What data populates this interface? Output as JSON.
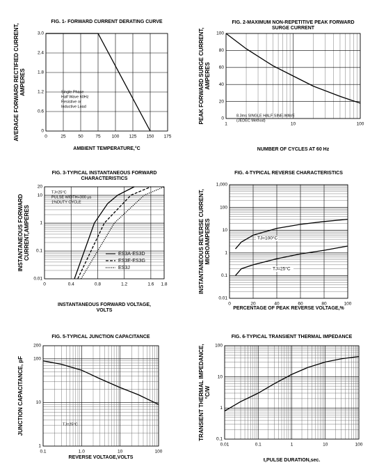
{
  "chart_data": [
    {
      "type": "line",
      "title": [
        "FIG. 1- FORWARD CURRENT DERATING CURVE"
      ],
      "y_label": [
        "AVERAGE FORWARD RECTIFIED CURRENT,",
        "AMPERES"
      ],
      "x_label": [
        "AMBIENT TEMPERATURE,°C"
      ],
      "x": [
        0,
        75,
        150
      ],
      "values": [
        3.0,
        3.0,
        0
      ],
      "color": "#000000",
      "xlim": [
        0,
        175
      ],
      "xticks": [
        0,
        25,
        50,
        75,
        100,
        125,
        150,
        175
      ],
      "ylim": [
        0,
        3.0
      ],
      "yticks": [
        0,
        0.6,
        1.2,
        1.8,
        2.4,
        {
          "value": 3.0,
          "label": "3.0"
        }
      ],
      "annotations": [
        "Single Phase",
        "Half Wave 60Hz",
        "Resistive or",
        "Inductive Load"
      ],
      "grid": true
    },
    {
      "type": "line",
      "title": [
        "FIG. 2-MAXIMUM NON-REPETITIVE PEAK FORWARD",
        "SURGE CURRENT"
      ],
      "y_label": [
        "PEAK FORWARD SURGE CURRENT,",
        "AMPERES"
      ],
      "x_label": [
        "NUMBER OF CYCLES AT 60 Hz"
      ],
      "x": [
        1,
        2,
        5,
        10,
        20,
        50,
        100
      ],
      "values": [
        100,
        82,
        62,
        50,
        38,
        26,
        18
      ],
      "color": "#000000",
      "xscale": "log",
      "xlim": [
        1,
        100
      ],
      "xticks": [
        1,
        10,
        100
      ],
      "ylim": [
        0,
        100
      ],
      "yticks": [
        0,
        20,
        40,
        60,
        80,
        100
      ],
      "annotations": [
        "8.3ms SINGLE HALF SINE-WAVE",
        "(JEDEC Method)"
      ],
      "grid": true
    },
    {
      "type": "line",
      "title": [
        "FIG. 3-TYPICAL INSTANTANEOUS FORWARD",
        "CHARACTERISTICS"
      ],
      "y_label": [
        "INSTANTANEOUS FORWARD",
        "CURRENT,AMPERES"
      ],
      "x_label": [
        "INSTANTANEOUS FORWARD VOLTAGE,",
        "VOLTS"
      ],
      "series": [
        {
          "name": "ES3A-ES3D",
          "color": "#000000",
          "dash": "solid",
          "x": [
            0.45,
            0.6,
            0.75,
            0.95,
            1.1,
            1.35
          ],
          "values": [
            0.01,
            0.1,
            1,
            5,
            10,
            20
          ]
        },
        {
          "name": "ES3E-ES3G",
          "color": "#000000",
          "dash": "dashed",
          "x": [
            0.5,
            0.7,
            0.9,
            1.3,
            1.6
          ],
          "values": [
            0.01,
            0.1,
            1,
            10,
            20
          ]
        },
        {
          "name": "ES3J",
          "color": "#000000",
          "dash": "dotted",
          "x": [
            0.55,
            0.8,
            1.05,
            1.5,
            1.8
          ],
          "values": [
            0.01,
            0.1,
            1,
            10,
            20
          ]
        }
      ],
      "xlim": [
        0,
        1.8
      ],
      "xticks": [
        0,
        0.4,
        0.8,
        1.2,
        1.6,
        1.8
      ],
      "yscale": "log",
      "ylim": [
        0.01,
        20
      ],
      "yticks": [
        0.01,
        0.1,
        1,
        10,
        20
      ],
      "annotations": [
        "TJ=25°C",
        "PULSE WIDTH=300 μs",
        "1%DUTY CYCLE"
      ],
      "legend": "lower-right",
      "grid": true
    },
    {
      "type": "line",
      "title": [
        "FIG. 4-TYPICAL REVERSE CHARACTERISTICS"
      ],
      "y_label": [
        "INSTANTANEOUS REVERSE CURRENT,",
        "MICROAMPERES"
      ],
      "x_label": [
        "PERCENTAGE OF PEAK REVERSE VOLTAGE,%"
      ],
      "series": [
        {
          "name": "TJ=100°C",
          "color": "#000000",
          "x": [
            5,
            10,
            20,
            40,
            60,
            80,
            100
          ],
          "values": [
            1.5,
            3,
            6,
            12,
            18,
            24,
            30
          ]
        },
        {
          "name": "TJ=25°C",
          "color": "#000000",
          "x": [
            5,
            10,
            20,
            40,
            60,
            80,
            100
          ],
          "values": [
            0.1,
            0.2,
            0.3,
            0.55,
            0.9,
            1.3,
            2
          ]
        }
      ],
      "xlim": [
        0,
        100
      ],
      "xticks": [
        0,
        20,
        40,
        60,
        80,
        100
      ],
      "yscale": "log",
      "ylim": [
        0.01,
        1000
      ],
      "yticks": [
        0.01,
        0.1,
        1,
        10,
        100,
        {
          "value": 1000,
          "label": "1,000"
        }
      ],
      "grid": true
    },
    {
      "type": "line",
      "title": [
        "FIG. 5-TYPICAL JUNCTION CAPACITANCE"
      ],
      "y_label": [
        "JUNCTION CAPACITANCE, pF"
      ],
      "x_label": [
        "REVERSE VOLTAGE,VOLTS"
      ],
      "x": [
        0.1,
        0.3,
        1,
        3,
        10,
        30,
        100
      ],
      "values": [
        90,
        75,
        55,
        35,
        22,
        15,
        9
      ],
      "color": "#000000",
      "xscale": "log",
      "xlim": [
        0.1,
        100
      ],
      "xticks": [
        0.1,
        {
          "value": 1,
          "label": "1.0"
        },
        10,
        100
      ],
      "yscale": "log",
      "ylim": [
        1,
        200
      ],
      "yticks": [
        1,
        10,
        100,
        200
      ],
      "annotations": [
        "TJ=25°C"
      ],
      "grid": true
    },
    {
      "type": "line",
      "title": [
        "FIG. 6-TYPICAL TRANSIENT THERMAL IMPEDANCE"
      ],
      "y_label": [
        "TRANSIENT THERMAL IMPEDANCE,",
        "°C/W"
      ],
      "x_label": [
        "t,PULSE DURATION,sec."
      ],
      "x": [
        0.01,
        0.03,
        0.1,
        0.3,
        1,
        3,
        10,
        30,
        100
      ],
      "values": [
        0.8,
        1.6,
        3,
        6,
        12,
        20,
        30,
        38,
        45
      ],
      "color": "#000000",
      "xscale": "log",
      "xlim": [
        0.01,
        100
      ],
      "xticks": [
        0.01,
        0.1,
        1,
        10,
        100
      ],
      "yscale": "log",
      "ylim": [
        0.1,
        100
      ],
      "yticks": [
        0.1,
        1,
        10,
        100
      ],
      "grid": true
    }
  ]
}
